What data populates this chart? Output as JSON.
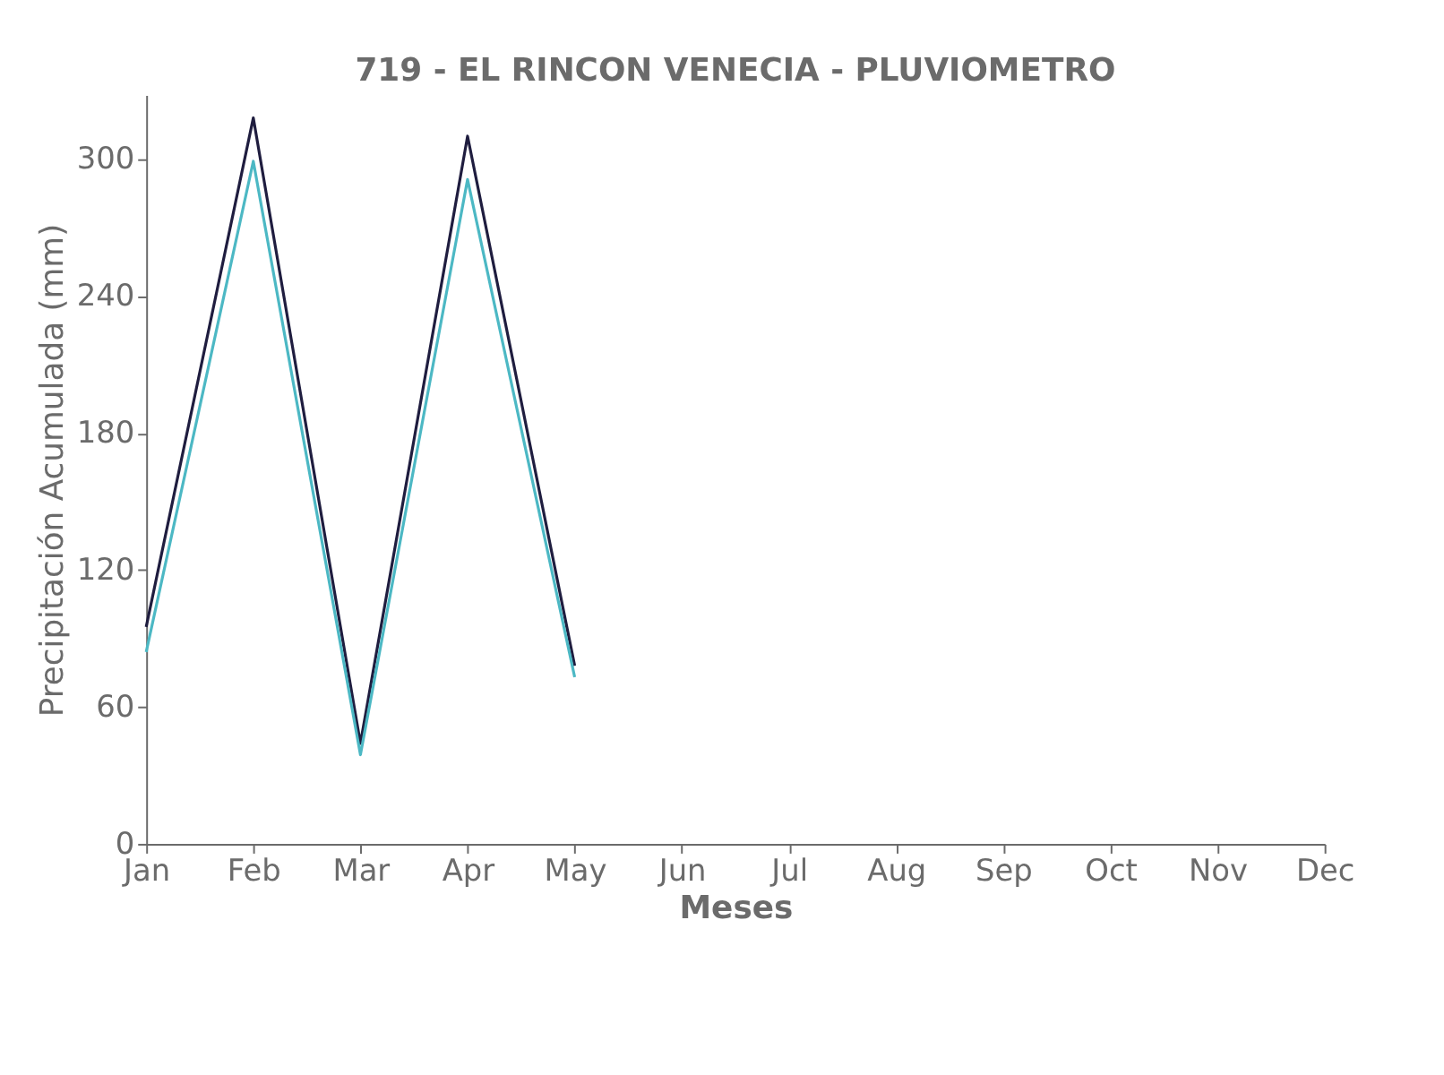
{
  "chart_data": {
    "type": "line",
    "title": "719 - EL RINCON VENECIA - PLUVIOMETRO",
    "xlabel": "Meses",
    "ylabel": "Precipitación Acumulada (mm)",
    "categories": [
      "Jan",
      "Feb",
      "Mar",
      "Apr",
      "May",
      "Jun",
      "Jul",
      "Aug",
      "Sep",
      "Oct",
      "Nov",
      "Dec"
    ],
    "series": [
      {
        "color": "#1f1d3f",
        "values": [
          95,
          318,
          44,
          310,
          78,
          null,
          null,
          null,
          null,
          null,
          null,
          null
        ]
      },
      {
        "color": "#4cb8c4",
        "values": [
          84,
          299,
          39,
          291,
          73,
          null,
          null,
          null,
          null,
          null,
          null,
          null
        ]
      }
    ],
    "ylim": [
      0,
      328
    ],
    "yticks": [
      0,
      60,
      120,
      180,
      240,
      300
    ],
    "grid": false,
    "legend": false,
    "line_style": "solid",
    "marker": "none"
  }
}
